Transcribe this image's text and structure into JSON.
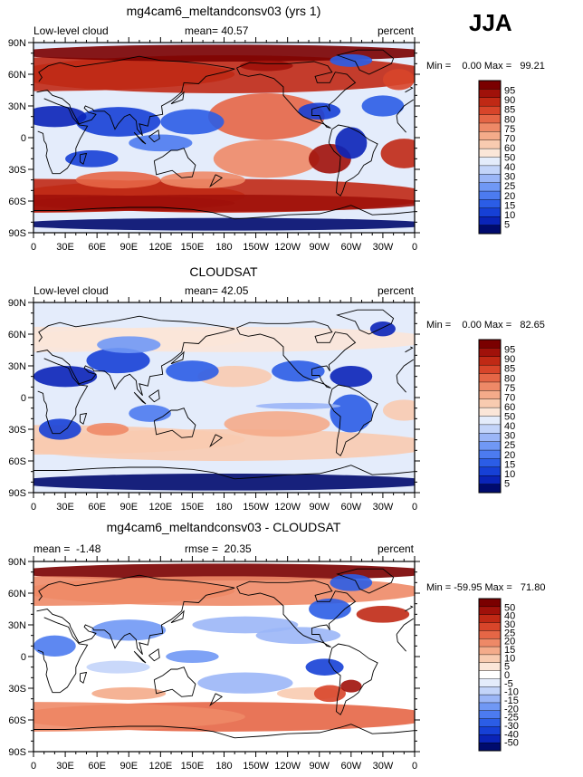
{
  "season": "JJA",
  "x_ticks": [
    "0",
    "30E",
    "60E",
    "90E",
    "120E",
    "150E",
    "180",
    "150W",
    "120W",
    "90W",
    "60W",
    "30W",
    "0"
  ],
  "y_ticks": [
    "90N",
    "60N",
    "30N",
    "0",
    "30S",
    "60S",
    "90S"
  ],
  "colors": {
    "abs_scale": [
      "#000b6e",
      "#0a24b8",
      "#1640d6",
      "#2b5de6",
      "#4c7bf0",
      "#7098f5",
      "#9bb6f7",
      "#c3d4f9",
      "#e4ecfb",
      "#fbe6d8",
      "#f8cbb0",
      "#f4ab8a",
      "#ee8967",
      "#e56646",
      "#d8452a",
      "#c02915",
      "#a0110a",
      "#7a0000"
    ],
    "diff_scale": [
      "#000b6e",
      "#0a24b8",
      "#1640d6",
      "#2b5de6",
      "#4c7bf0",
      "#7098f5",
      "#9bb6f7",
      "#c3d4f9",
      "#e4ecfb",
      "#ffffff",
      "#fbe6d8",
      "#f8cbb0",
      "#f4ab8a",
      "#ee8967",
      "#e56646",
      "#d8452a",
      "#c02915",
      "#a0110a",
      "#7a0000"
    ],
    "land": "#000000"
  },
  "chart_data": [
    {
      "type": "heatmap",
      "title": "mg4cam6_meltandconsv03 (yrs 1)",
      "left_label": "Low-level cloud",
      "stat_label": "mean=  40.57",
      "units": "percent",
      "minmax": "Min =    0.00 Max =   99.21",
      "min": 0.0,
      "max": 99.21,
      "mean": 40.57,
      "xlim": [
        0,
        360
      ],
      "ylim": [
        -90,
        90
      ],
      "legend_levels": [
        "95",
        "90",
        "85",
        "80",
        "75",
        "70",
        "60",
        "50",
        "40",
        "30",
        "25",
        "20",
        "15",
        "10",
        "5"
      ]
    },
    {
      "type": "heatmap",
      "title": "CLOUDSAT",
      "left_label": "Low-level cloud",
      "stat_label": "mean=  42.05",
      "units": "percent",
      "minmax": "Min =    0.00 Max =   82.65",
      "min": 0.0,
      "max": 82.65,
      "mean": 42.05,
      "xlim": [
        0,
        360
      ],
      "ylim": [
        -90,
        90
      ],
      "legend_levels": [
        "95",
        "90",
        "85",
        "80",
        "75",
        "70",
        "60",
        "50",
        "40",
        "30",
        "25",
        "20",
        "15",
        "10",
        "5"
      ]
    },
    {
      "type": "heatmap",
      "title": "mg4cam6_meltandconsv03 - CLOUDSAT",
      "left_label": "mean =  -1.48",
      "stat_label": "rmse =  20.35",
      "units": "percent",
      "minmax": "Min = -59.95 Max =   71.80",
      "min": -59.95,
      "max": 71.8,
      "mean": -1.48,
      "rmse": 20.35,
      "xlim": [
        0,
        360
      ],
      "ylim": [
        -90,
        90
      ],
      "legend_levels": [
        "50",
        "40",
        "30",
        "25",
        "20",
        "15",
        "10",
        "5",
        "0",
        "-5",
        "-10",
        "-15",
        "-20",
        "-25",
        "-30",
        "-40",
        "-50"
      ]
    }
  ]
}
